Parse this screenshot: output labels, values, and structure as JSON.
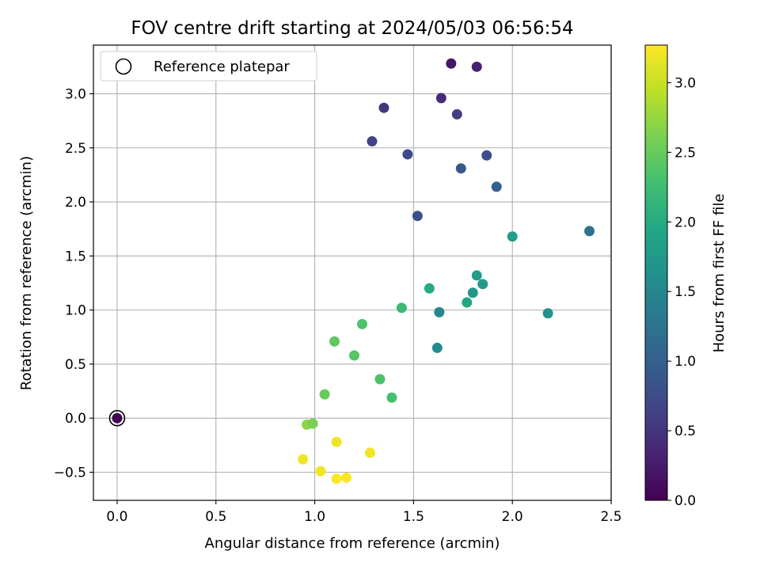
{
  "chart_data": {
    "type": "scatter",
    "title": "FOV centre drift starting at 2024/05/03 06:56:54",
    "xlabel": "Angular distance from reference (arcmin)",
    "ylabel": "Rotation from reference (arcmin)",
    "xlim": [
      -0.12,
      2.5
    ],
    "ylim": [
      -0.76,
      3.45
    ],
    "xticks": [
      0.0,
      0.5,
      1.0,
      1.5,
      2.0,
      2.5
    ],
    "xtick_labels": [
      "0.0",
      "0.5",
      "1.0",
      "1.5",
      "2.0",
      "2.5"
    ],
    "yticks": [
      -0.5,
      0.0,
      0.5,
      1.0,
      1.5,
      2.0,
      2.5,
      3.0
    ],
    "ytick_labels": [
      "−0.5",
      "0.0",
      "0.5",
      "1.0",
      "1.5",
      "2.0",
      "2.5",
      "3.0"
    ],
    "grid": true,
    "legend": {
      "placement": "top-left",
      "label": "Reference platepar"
    },
    "reference_point": {
      "x": 0.0,
      "y": 0.0,
      "c": 0.0
    },
    "colorbar": {
      "label": "Hours from first FF file",
      "colormap": "viridis",
      "range": [
        0.0,
        3.27
      ],
      "ticks": [
        0.0,
        0.5,
        1.0,
        1.5,
        2.0,
        2.5,
        3.0
      ],
      "tick_labels": [
        "0.0",
        "0.5",
        "1.0",
        "1.5",
        "2.0",
        "2.5",
        "3.0"
      ]
    },
    "points": [
      {
        "x": 1.69,
        "y": 3.28,
        "c": 0.2
      },
      {
        "x": 1.82,
        "y": 3.25,
        "c": 0.28
      },
      {
        "x": 1.64,
        "y": 2.96,
        "c": 0.4
      },
      {
        "x": 1.35,
        "y": 2.87,
        "c": 0.5
      },
      {
        "x": 1.72,
        "y": 2.81,
        "c": 0.6
      },
      {
        "x": 1.29,
        "y": 2.56,
        "c": 0.65
      },
      {
        "x": 1.47,
        "y": 2.44,
        "c": 0.7
      },
      {
        "x": 1.87,
        "y": 2.43,
        "c": 0.75
      },
      {
        "x": 1.74,
        "y": 2.31,
        "c": 0.9
      },
      {
        "x": 1.92,
        "y": 2.14,
        "c": 1.0
      },
      {
        "x": 1.52,
        "y": 1.87,
        "c": 0.8
      },
      {
        "x": 2.39,
        "y": 1.73,
        "c": 1.2
      },
      {
        "x": 2.0,
        "y": 1.68,
        "c": 1.8
      },
      {
        "x": 1.82,
        "y": 1.32,
        "c": 1.8
      },
      {
        "x": 1.85,
        "y": 1.24,
        "c": 1.75
      },
      {
        "x": 1.58,
        "y": 1.2,
        "c": 2.0
      },
      {
        "x": 1.8,
        "y": 1.16,
        "c": 1.7
      },
      {
        "x": 1.77,
        "y": 1.07,
        "c": 1.95
      },
      {
        "x": 1.44,
        "y": 1.02,
        "c": 2.2
      },
      {
        "x": 1.63,
        "y": 0.98,
        "c": 1.5
      },
      {
        "x": 2.18,
        "y": 0.97,
        "c": 1.65
      },
      {
        "x": 1.24,
        "y": 0.87,
        "c": 2.35
      },
      {
        "x": 1.1,
        "y": 0.71,
        "c": 2.45
      },
      {
        "x": 1.62,
        "y": 0.65,
        "c": 1.55
      },
      {
        "x": 1.2,
        "y": 0.58,
        "c": 2.4
      },
      {
        "x": 1.33,
        "y": 0.36,
        "c": 2.35
      },
      {
        "x": 1.05,
        "y": 0.22,
        "c": 2.5
      },
      {
        "x": 1.39,
        "y": 0.19,
        "c": 2.3
      },
      {
        "x": 0.96,
        "y": -0.06,
        "c": 2.7
      },
      {
        "x": 0.99,
        "y": -0.05,
        "c": 2.6
      },
      {
        "x": 1.11,
        "y": -0.22,
        "c": 3.2
      },
      {
        "x": 1.28,
        "y": -0.32,
        "c": 3.2
      },
      {
        "x": 0.94,
        "y": -0.38,
        "c": 3.2
      },
      {
        "x": 1.03,
        "y": -0.49,
        "c": 3.2
      },
      {
        "x": 1.11,
        "y": -0.56,
        "c": 3.25
      },
      {
        "x": 1.16,
        "y": -0.55,
        "c": 3.25
      }
    ]
  }
}
